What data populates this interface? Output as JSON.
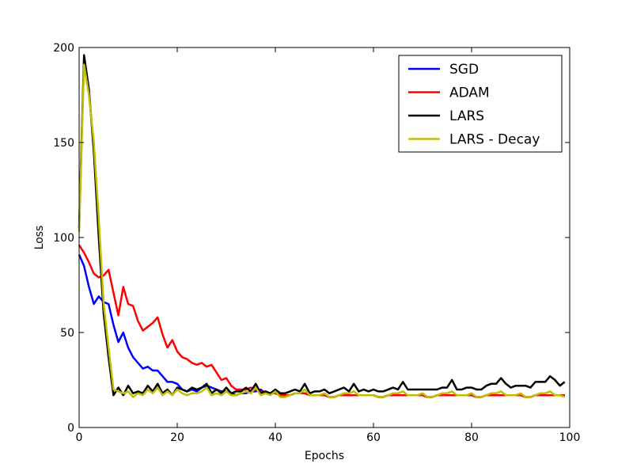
{
  "chart_data": {
    "type": "line",
    "title": "",
    "xlabel": "Epochs",
    "ylabel": "Loss",
    "xlim": [
      0,
      100
    ],
    "ylim": [
      0,
      200
    ],
    "xticks": [
      0,
      20,
      40,
      60,
      80,
      100
    ],
    "yticks": [
      0,
      50,
      100,
      150,
      200
    ],
    "grid": false,
    "legend": "top-right",
    "x": [
      0,
      1,
      2,
      3,
      4,
      5,
      6,
      7,
      8,
      9,
      10,
      11,
      12,
      13,
      14,
      15,
      16,
      17,
      18,
      19,
      20,
      21,
      22,
      23,
      24,
      25,
      26,
      27,
      28,
      29,
      30,
      31,
      32,
      33,
      34,
      35,
      36,
      37,
      38,
      39,
      40,
      41,
      42,
      43,
      44,
      45,
      46,
      47,
      48,
      49,
      50,
      51,
      52,
      53,
      54,
      55,
      56,
      57,
      58,
      59,
      60,
      61,
      62,
      63,
      64,
      65,
      66,
      67,
      68,
      69,
      70,
      71,
      72,
      73,
      74,
      75,
      76,
      77,
      78,
      79,
      80,
      81,
      82,
      83,
      84,
      85,
      86,
      87,
      88,
      89,
      90,
      91,
      92,
      93,
      94,
      95,
      96,
      97,
      98,
      99
    ],
    "series": [
      {
        "name": "SGD",
        "color": "#0000ff",
        "values": [
          91,
          85,
          74,
          65,
          69,
          66,
          65,
          54,
          45,
          50,
          42,
          37,
          34,
          31,
          32,
          30,
          30,
          27,
          24,
          24,
          23,
          20,
          19,
          20,
          19,
          21,
          22,
          21,
          20,
          19,
          19,
          18,
          17,
          18,
          18,
          19,
          19,
          20,
          18,
          18,
          18,
          17,
          17,
          17,
          18,
          18,
          18,
          17,
          17,
          17,
          17,
          16,
          16,
          17,
          17,
          17,
          17,
          17,
          17,
          17,
          17,
          16,
          16,
          17,
          17,
          17,
          17,
          17,
          17,
          17,
          17,
          16,
          16,
          17,
          17,
          17,
          17,
          17,
          17,
          17,
          17,
          16,
          16,
          17,
          17,
          17,
          17,
          17,
          17,
          17,
          17,
          16,
          16,
          17,
          17,
          17,
          17,
          17,
          17,
          17
        ]
      },
      {
        "name": "ADAM",
        "color": "#ff0000",
        "values": [
          96,
          92,
          87,
          81,
          79,
          80,
          83,
          71,
          59,
          74,
          65,
          64,
          56,
          51,
          53,
          55,
          58,
          49,
          42,
          46,
          40,
          37,
          36,
          34,
          33,
          34,
          32,
          33,
          29,
          25,
          26,
          22,
          20,
          20,
          20,
          21,
          20,
          19,
          18,
          18,
          18,
          17,
          17,
          17,
          18,
          18,
          18,
          17,
          17,
          17,
          17,
          16,
          16,
          17,
          17,
          17,
          17,
          17,
          17,
          17,
          17,
          16,
          16,
          17,
          17,
          17,
          17,
          17,
          17,
          17,
          17,
          16,
          16,
          17,
          17,
          17,
          17,
          17,
          17,
          17,
          17,
          16,
          16,
          17,
          17,
          17,
          17,
          17,
          17,
          17,
          17,
          16,
          16,
          17,
          17,
          17,
          17,
          17,
          17,
          17
        ]
      },
      {
        "name": "LARS",
        "color": "#000000",
        "values": [
          105,
          196,
          178,
          145,
          100,
          60,
          37,
          17,
          21,
          17,
          22,
          18,
          19,
          18,
          22,
          19,
          23,
          18,
          20,
          17,
          21,
          20,
          19,
          21,
          20,
          21,
          23,
          18,
          20,
          18,
          21,
          18,
          19,
          19,
          21,
          19,
          23,
          18,
          19,
          18,
          20,
          18,
          18,
          19,
          20,
          19,
          23,
          18,
          19,
          19,
          20,
          18,
          19,
          20,
          21,
          19,
          23,
          19,
          20,
          19,
          20,
          19,
          19,
          20,
          21,
          20,
          24,
          20,
          20,
          20,
          20,
          20,
          20,
          20,
          21,
          21,
          25,
          20,
          20,
          21,
          21,
          20,
          20,
          22,
          23,
          23,
          26,
          23,
          21,
          22,
          22,
          22,
          21,
          24,
          24,
          24,
          27,
          25,
          22,
          24
        ]
      },
      {
        "name": "LARS - Decay",
        "color": "#bfbf00",
        "values": [
          103,
          191,
          175,
          150,
          110,
          65,
          42,
          20,
          19,
          18,
          19,
          16,
          18,
          17,
          20,
          18,
          21,
          17,
          19,
          17,
          20,
          18,
          17,
          18,
          18,
          19,
          21,
          17,
          18,
          17,
          19,
          17,
          17,
          18,
          19,
          18,
          21,
          17,
          18,
          17,
          19,
          16,
          16,
          17,
          18,
          18,
          20,
          17,
          17,
          17,
          18,
          16,
          16,
          17,
          18,
          18,
          19,
          17,
          17,
          17,
          17,
          16,
          16,
          17,
          18,
          18,
          19,
          17,
          17,
          17,
          18,
          16,
          16,
          17,
          18,
          18,
          19,
          17,
          17,
          17,
          18,
          16,
          16,
          17,
          18,
          18,
          19,
          17,
          17,
          17,
          18,
          16,
          16,
          17,
          18,
          18,
          19,
          17,
          17,
          16
        ]
      }
    ]
  }
}
